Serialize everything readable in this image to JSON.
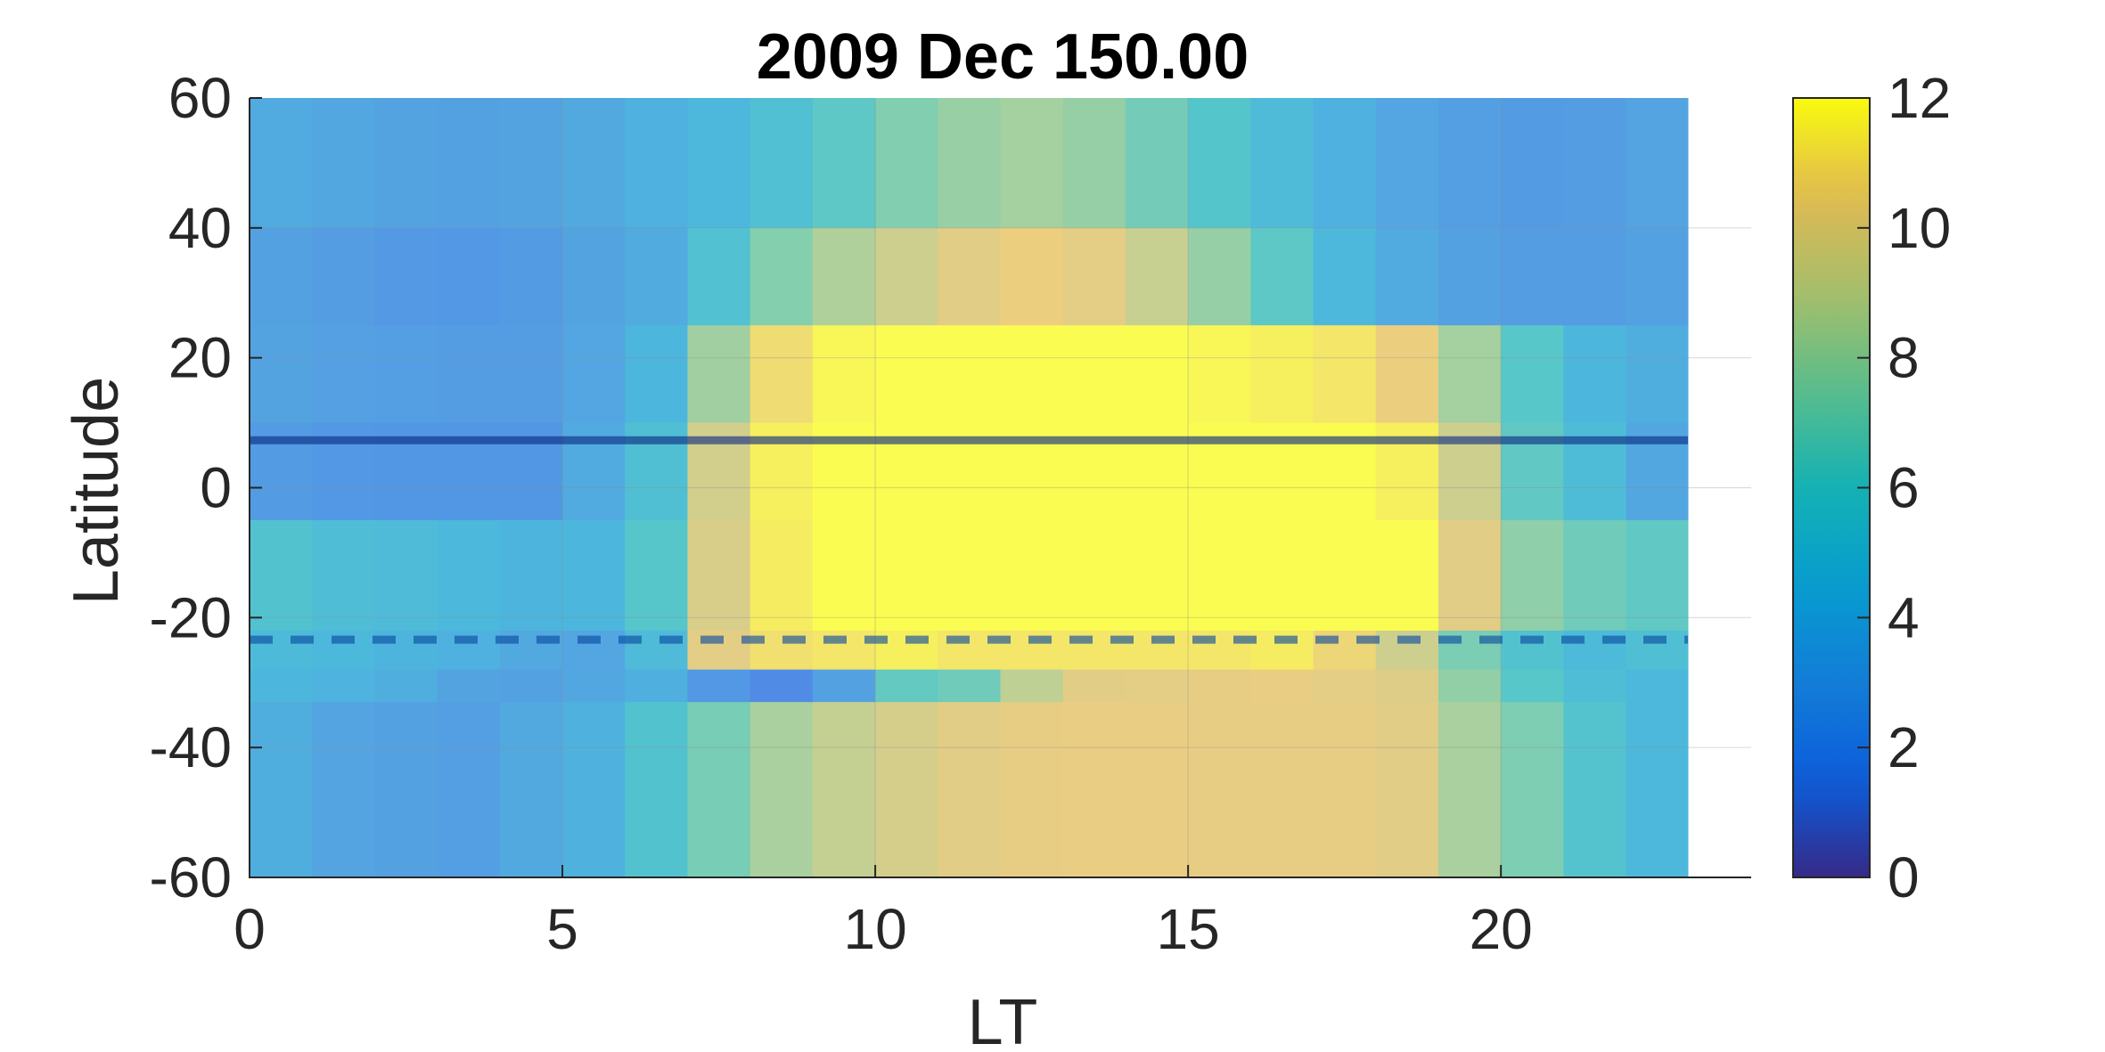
{
  "chart_data": {
    "type": "heatmap",
    "title": "2009 Dec   150.00",
    "xlabel": "LT",
    "ylabel": "Latitude",
    "xlim": [
      0,
      24
    ],
    "ylim": [
      -60,
      60
    ],
    "x_ticks": [
      "0",
      "5",
      "10",
      "15",
      "20"
    ],
    "y_ticks": [
      "-60",
      "-40",
      "-20",
      "0",
      "20",
      "40",
      "60"
    ],
    "grid": true,
    "colorbar": {
      "colormap": "parula",
      "range": [
        0,
        12
      ],
      "ticks": [
        "0",
        "2",
        "4",
        "6",
        "8",
        "10",
        "12"
      ]
    },
    "x_bins": [
      0,
      1,
      2,
      3,
      4,
      5,
      6,
      7,
      8,
      9,
      10,
      11,
      12,
      13,
      14,
      15,
      16,
      17,
      18,
      19,
      20,
      21,
      22
    ],
    "y_bands": [
      {
        "lat_range": [
          40,
          60
        ],
        "values": [
          3.6,
          3.4,
          3.1,
          3.0,
          3.1,
          3.5,
          4.0,
          4.6,
          5.3,
          6.2,
          7.3,
          8.0,
          8.3,
          7.9,
          6.9,
          5.8,
          4.8,
          4.0,
          3.3,
          2.8,
          2.6,
          2.7,
          3.2
        ]
      },
      {
        "lat_range": [
          25,
          40
        ],
        "values": [
          3.0,
          2.7,
          2.5,
          2.4,
          2.6,
          3.1,
          3.7,
          5.4,
          7.4,
          8.6,
          9.5,
          10.2,
          10.6,
          10.3,
          9.3,
          7.9,
          6.2,
          4.6,
          3.6,
          3.0,
          2.7,
          2.7,
          3.0
        ]
      },
      {
        "lat_range": [
          10,
          25
        ],
        "values": [
          3.1,
          2.9,
          2.8,
          2.7,
          2.7,
          3.3,
          4.4,
          8.2,
          11.0,
          11.8,
          12.0,
          12.0,
          12.0,
          12.0,
          12.0,
          11.8,
          11.6,
          11.3,
          10.6,
          8.3,
          6.0,
          4.4,
          3.8
        ]
      },
      {
        "lat_range": [
          -5,
          10
        ],
        "values": [
          2.6,
          2.4,
          2.3,
          2.3,
          2.3,
          3.6,
          5.2,
          9.7,
          11.6,
          12.0,
          12.0,
          12.0,
          12.0,
          12.0,
          12.0,
          12.0,
          12.0,
          12.0,
          11.6,
          9.5,
          6.3,
          4.9,
          3.4
        ]
      },
      {
        "lat_range": [
          -22,
          -5
        ],
        "values": [
          5.5,
          5.0,
          4.8,
          4.5,
          4.3,
          4.4,
          5.9,
          9.9,
          11.5,
          12.0,
          12.0,
          12.0,
          12.0,
          12.0,
          12.0,
          12.0,
          12.0,
          12.0,
          12.0,
          10.2,
          7.7,
          6.8,
          6.3
        ]
      },
      {
        "lat_range": [
          -28,
          -22
        ],
        "values": [
          4.7,
          4.5,
          4.3,
          4.0,
          3.5,
          3.3,
          4.8,
          10.3,
          11.1,
          11.3,
          11.6,
          11.3,
          11.3,
          11.3,
          11.3,
          11.3,
          11.5,
          10.8,
          9.5,
          7.1,
          5.5,
          4.7,
          5.2
        ]
      },
      {
        "lat_range": [
          -33,
          -28
        ],
        "values": [
          4.4,
          4.2,
          3.8,
          3.1,
          3.0,
          3.4,
          3.9,
          2.4,
          1.6,
          3.0,
          6.4,
          6.8,
          9.0,
          10.2,
          10.3,
          10.4,
          10.5,
          10.3,
          10.1,
          7.8,
          6.0,
          5.0,
          4.6
        ]
      },
      {
        "lat_range": [
          -60,
          -33
        ],
        "values": [
          3.8,
          3.2,
          3.0,
          2.8,
          3.5,
          4.1,
          5.5,
          7.0,
          8.4,
          9.2,
          9.8,
          10.2,
          10.4,
          10.5,
          10.5,
          10.4,
          10.4,
          10.4,
          10.2,
          8.4,
          7.2,
          5.6,
          4.6
        ]
      }
    ],
    "lines": [
      {
        "style": "solid",
        "latitude": 7.3
      },
      {
        "style": "dashed",
        "latitude": -23.4
      }
    ]
  }
}
